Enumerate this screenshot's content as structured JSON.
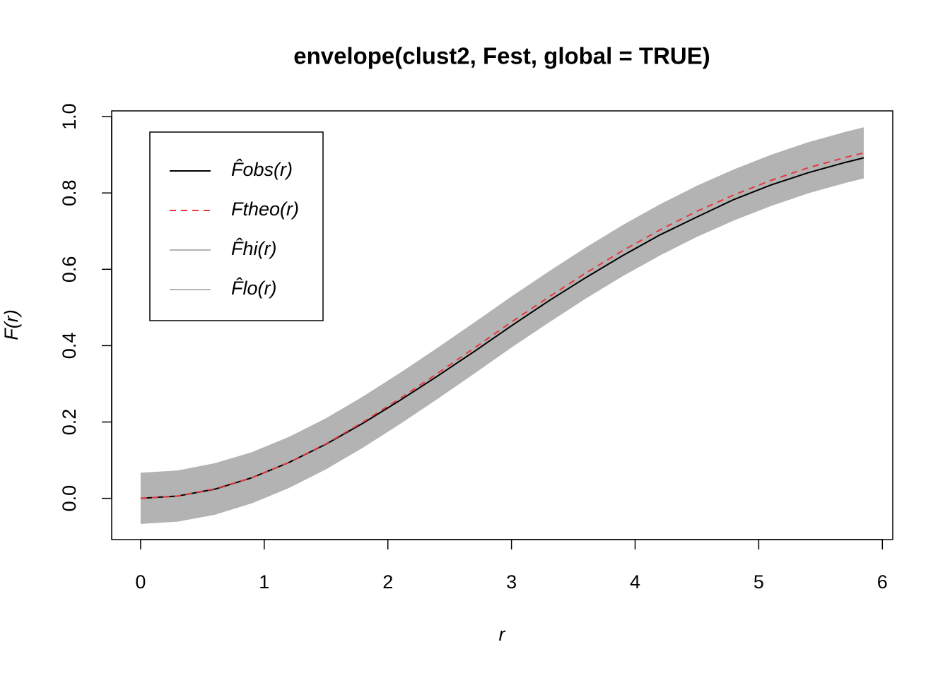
{
  "chart_data": {
    "type": "line",
    "title": "envelope(clust2, Fest, global = TRUE)",
    "xlabel": "r",
    "ylabel": "F(r)",
    "x": [
      0,
      0.3,
      0.6,
      0.9,
      1.2,
      1.5,
      1.8,
      2.1,
      2.4,
      2.7,
      3.0,
      3.3,
      3.6,
      3.9,
      4.2,
      4.5,
      4.8,
      5.1,
      5.4,
      5.7,
      5.85
    ],
    "series": [
      {
        "name": "F̂obs(r)",
        "color": "#000000",
        "linestyle": "solid",
        "values": [
          0,
          0.006,
          0.024,
          0.054,
          0.094,
          0.142,
          0.197,
          0.257,
          0.32,
          0.385,
          0.452,
          0.517,
          0.578,
          0.636,
          0.69,
          0.737,
          0.783,
          0.821,
          0.853,
          0.88,
          0.892
        ]
      },
      {
        "name": "Ftheo(r)",
        "color": "#e8383d",
        "linestyle": "dashed",
        "values": [
          0,
          0.006,
          0.025,
          0.054,
          0.094,
          0.143,
          0.2,
          0.262,
          0.327,
          0.394,
          0.462,
          0.527,
          0.59,
          0.649,
          0.703,
          0.752,
          0.795,
          0.833,
          0.866,
          0.893,
          0.905
        ]
      },
      {
        "name": "F̂hi(r)",
        "color": "#b3b3b3",
        "linestyle": "solid",
        "values": [
          0.067,
          0.073,
          0.092,
          0.121,
          0.161,
          0.21,
          0.267,
          0.329,
          0.394,
          0.461,
          0.529,
          0.594,
          0.657,
          0.716,
          0.77,
          0.819,
          0.862,
          0.9,
          0.933,
          0.96,
          0.972
        ]
      },
      {
        "name": "F̂lo(r)",
        "color": "#b3b3b3",
        "linestyle": "solid",
        "values": [
          -0.067,
          -0.061,
          -0.043,
          -0.013,
          0.027,
          0.076,
          0.133,
          0.195,
          0.26,
          0.327,
          0.395,
          0.46,
          0.523,
          0.582,
          0.636,
          0.685,
          0.728,
          0.766,
          0.799,
          0.826,
          0.838
        ]
      }
    ],
    "xlim": [
      -0.234,
      6.084
    ],
    "ylim": [
      -0.108,
      1.015
    ],
    "xticks": [
      0,
      1,
      2,
      3,
      4,
      5,
      6
    ],
    "yticks": [
      {
        "value": 0,
        "label": "0.0"
      },
      0.2,
      0.4,
      0.6,
      0.8,
      {
        "value": 1,
        "label": "1.0"
      }
    ],
    "legend": "top-left"
  }
}
